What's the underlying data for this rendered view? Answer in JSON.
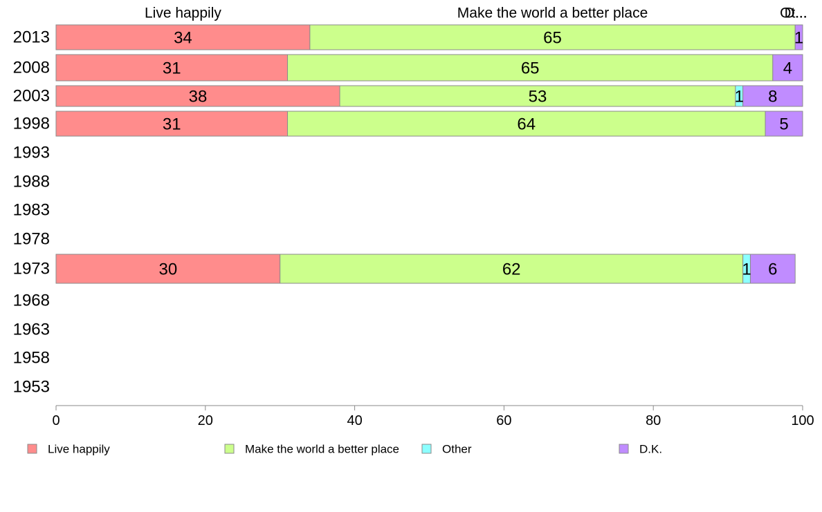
{
  "chart_data": {
    "type": "bar",
    "orientation": "horizontal",
    "stacked": true,
    "categories": [
      "2013",
      "2008",
      "2003",
      "1998",
      "1993",
      "1988",
      "1983",
      "1978",
      "1973",
      "1968",
      "1963",
      "1958",
      "1953"
    ],
    "series": [
      {
        "name": "Live happily",
        "color": "#ff8c8c",
        "values": [
          34,
          31,
          38,
          31,
          null,
          null,
          null,
          null,
          30,
          null,
          null,
          null,
          null
        ]
      },
      {
        "name": "Make the world a better place",
        "color": "#ccff8c",
        "values": [
          65,
          65,
          53,
          64,
          null,
          null,
          null,
          null,
          62,
          null,
          null,
          null,
          null
        ]
      },
      {
        "name": "Other",
        "color": "#8cffff",
        "values": [
          0,
          0,
          1,
          0,
          null,
          null,
          null,
          null,
          1,
          null,
          null,
          null,
          null
        ]
      },
      {
        "name": "D.K.",
        "color": "#c08cff",
        "values": [
          1,
          4,
          8,
          5,
          null,
          null,
          null,
          null,
          6,
          null,
          null,
          null,
          null
        ]
      }
    ],
    "top_labels": [
      "Live happily",
      "Make the world a better place",
      "Ot...",
      "D..."
    ],
    "xlim": [
      0,
      100
    ],
    "xticks": [
      0,
      20,
      40,
      60,
      80,
      100
    ],
    "xlabel": "",
    "ylabel": "",
    "title": "",
    "legend_position": "bottom",
    "grid": false
  },
  "colors": {
    "bar_stroke": "#8a8a8a",
    "axis": "#888888"
  }
}
